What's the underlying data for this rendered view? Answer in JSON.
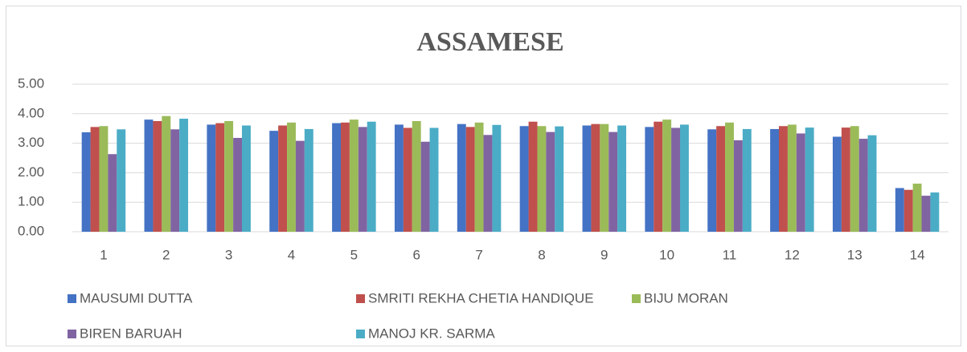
{
  "chart_data": {
    "type": "bar",
    "title": "ASSAMESE",
    "categories": [
      "1",
      "2",
      "3",
      "4",
      "5",
      "6",
      "7",
      "8",
      "9",
      "10",
      "11",
      "12",
      "13",
      "14"
    ],
    "series": [
      {
        "name": "MAUSUMI DUTTA",
        "color": "#4472c4",
        "values": [
          3.37,
          3.8,
          3.63,
          3.42,
          3.68,
          3.63,
          3.65,
          3.58,
          3.6,
          3.55,
          3.47,
          3.48,
          3.22,
          1.48
        ]
      },
      {
        "name": "SMRITI REKHA CHETIA HANDIQUE",
        "color": "#c0504d",
        "values": [
          3.55,
          3.75,
          3.68,
          3.6,
          3.7,
          3.52,
          3.55,
          3.73,
          3.65,
          3.73,
          3.58,
          3.58,
          3.53,
          1.42
        ]
      },
      {
        "name": "BIJU MORAN",
        "color": "#9bbb59",
        "values": [
          3.58,
          3.92,
          3.75,
          3.7,
          3.8,
          3.75,
          3.7,
          3.58,
          3.65,
          3.8,
          3.7,
          3.63,
          3.58,
          1.63
        ]
      },
      {
        "name": "BIREN BARUAH",
        "color": "#8064a2",
        "values": [
          2.63,
          3.47,
          3.18,
          3.08,
          3.55,
          3.05,
          3.28,
          3.38,
          3.38,
          3.52,
          3.1,
          3.33,
          3.15,
          1.22
        ]
      },
      {
        "name": "MANOJ KR. SARMA",
        "color": "#4bacc6",
        "values": [
          3.47,
          3.83,
          3.6,
          3.48,
          3.73,
          3.52,
          3.62,
          3.57,
          3.6,
          3.63,
          3.48,
          3.53,
          3.27,
          1.33
        ]
      }
    ],
    "ylim": [
      0,
      5
    ],
    "yticks": [
      {
        "value": 0,
        "label": "0.00"
      },
      {
        "value": 1,
        "label": "1.00"
      },
      {
        "value": 2,
        "label": "2.00"
      },
      {
        "value": 3,
        "label": "3.00"
      },
      {
        "value": 4,
        "label": "4.00"
      },
      {
        "value": 5,
        "label": "5.00"
      }
    ],
    "grid": true
  }
}
